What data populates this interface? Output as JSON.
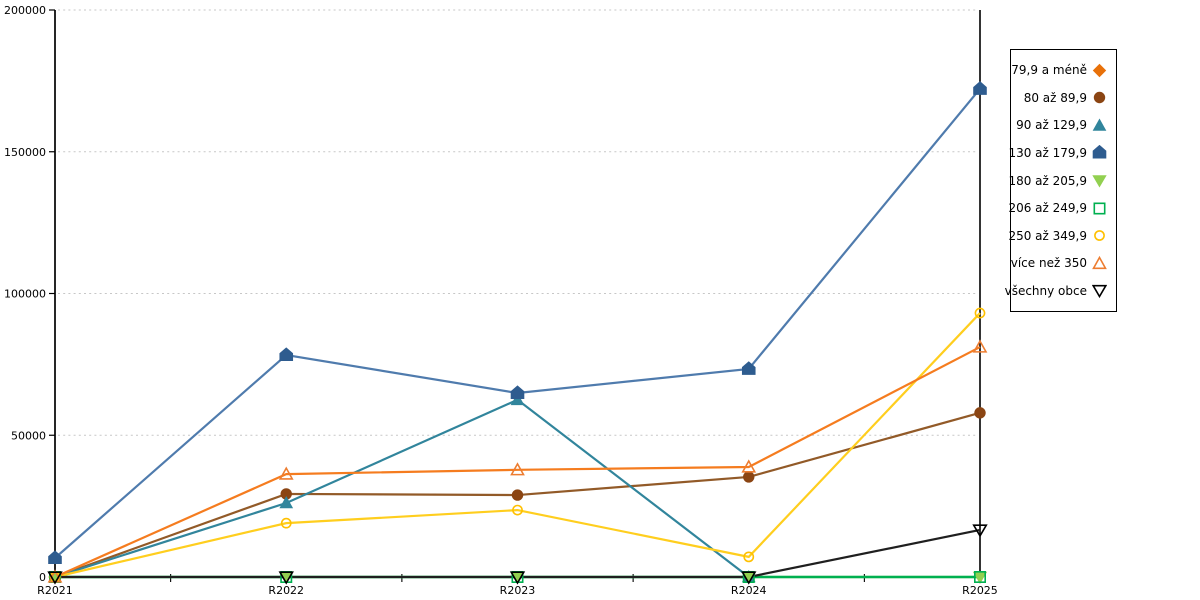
{
  "chart_data": {
    "type": "line",
    "title": "",
    "xlabel": "",
    "ylabel": "",
    "x_categories": [
      "R2021",
      "R2022",
      "R2023",
      "R2024",
      "R2025"
    ],
    "ylim": [
      0,
      200000
    ],
    "yticks": [
      0,
      50000,
      100000,
      150000,
      200000
    ],
    "ytick_labels": [
      "0",
      "50000",
      "100000",
      "150000",
      "200000"
    ],
    "grid": "horizontal-dashed",
    "gridline_color": "#C7C7C7",
    "axis_color": "#000000",
    "legend_position": "right-outside",
    "series": [
      {
        "name": "79,9 a méně",
        "marker": "diamond-filled",
        "color": "#E8710A",
        "line_color": "#E8710A",
        "values": [
          0,
          null,
          null,
          null,
          null
        ]
      },
      {
        "name": "80 až 89,9",
        "marker": "circle-filled",
        "color": "#8B4513",
        "line_color": "#925A28",
        "values": [
          0,
          29300,
          28900,
          35300,
          57900
        ]
      },
      {
        "name": "90 až 129,9",
        "marker": "triangle-up-filled",
        "color": "#31859C",
        "line_color": "#31859C",
        "values": [
          0,
          26100,
          62500,
          0,
          null
        ]
      },
      {
        "name": "130 až 179,9",
        "marker": "pentagon-filled",
        "color": "#2E5C8F",
        "line_color": "#4F7BAD",
        "values": [
          6700,
          78300,
          64900,
          73400,
          172200
        ]
      },
      {
        "name": "180 až 205,9",
        "marker": "triangle-down-filled",
        "color": "#92D050",
        "line_color": "#92D050",
        "values": [
          0,
          0,
          0,
          0,
          0
        ]
      },
      {
        "name": "206 až 249,9",
        "marker": "square-outline",
        "color": "#00B050",
        "line_color": "#00B050",
        "values": [
          0,
          0,
          0,
          0,
          0
        ]
      },
      {
        "name": "250 až 349,9",
        "marker": "circle-outline",
        "color": "#FFC000",
        "line_color": "#FFCE1E",
        "values": [
          0,
          19000,
          23600,
          7100,
          93100
        ]
      },
      {
        "name": "více než 350",
        "marker": "triangle-up-outline",
        "color": "#ED7D31",
        "line_color": "#F57C1F",
        "values": [
          0,
          36300,
          37800,
          38800,
          81100
        ]
      },
      {
        "name": "všechny obce",
        "marker": "triangle-down-outline",
        "color": "#000000",
        "line_color": "#1F1F1F",
        "values": [
          0,
          0,
          0,
          0,
          16600
        ]
      }
    ]
  }
}
